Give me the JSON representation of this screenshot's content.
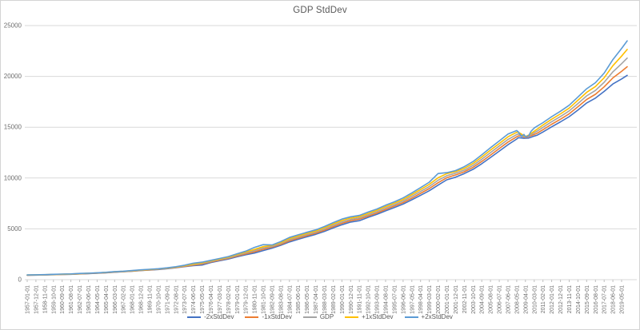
{
  "chart_data": {
    "type": "line",
    "title": "GDP StdDev",
    "ylim": [
      0,
      25000
    ],
    "yticks": [
      0,
      5000,
      10000,
      15000,
      20000,
      25000
    ],
    "grid": "horizontal",
    "legend_position": "bottom",
    "x_axis_note": "monthly dates, tick every 11 months, labels rotated 90deg",
    "months_per_tick": 11,
    "x_tick_labels": [
      "1957-01-01",
      "1957-12-01",
      "1958-11-01",
      "1959-10-01",
      "1960-09-01",
      "1961-08-01",
      "1962-07-01",
      "1963-06-01",
      "1964-05-01",
      "1965-04-01",
      "1966-03-01",
      "1967-02-01",
      "1968-01-01",
      "1968-12-01",
      "1969-11-01",
      "1970-10-01",
      "1971-09-01",
      "1972-08-01",
      "1973-07-01",
      "1974-06-01",
      "1975-05-01",
      "1976-04-01",
      "1977-03-01",
      "1978-02-01",
      "1979-01-01",
      "1979-12-01",
      "1980-11-01",
      "1981-10-01",
      "1982-09-01",
      "1983-08-01",
      "1984-07-01",
      "1985-06-01",
      "1986-05-01",
      "1987-04-01",
      "1988-03-01",
      "1989-02-01",
      "1990-01-01",
      "1990-12-01",
      "1991-11-01",
      "1992-10-01",
      "1993-09-01",
      "1994-08-01",
      "1995-07-01",
      "1996-06-01",
      "1997-05-01",
      "1998-04-01",
      "1999-03-01",
      "2000-02-01",
      "2001-01-01",
      "2001-12-01",
      "2002-11-01",
      "2003-10-01",
      "2004-09-01",
      "2005-08-01",
      "2006-07-01",
      "2007-06-01",
      "2008-05-01",
      "2009-04-01",
      "2010-03-01",
      "2011-02-01",
      "2012-01-01",
      "2012-12-01",
      "2013-11-01",
      "2014-10-01",
      "2015-09-01",
      "2016-08-01",
      "2017-07-01",
      "2018-06-01",
      "2019-05-01"
    ],
    "x_months_since_start": [
      0,
      11,
      22,
      33,
      44,
      55,
      66,
      77,
      88,
      99,
      110,
      121,
      132,
      143,
      154,
      165,
      176,
      187,
      198,
      209,
      220,
      231,
      242,
      253,
      264,
      275,
      286,
      297,
      308,
      319,
      330,
      341,
      352,
      363,
      374,
      385,
      396,
      407,
      418,
      429,
      440,
      451,
      462,
      473,
      484,
      495,
      506,
      517,
      528,
      539,
      550,
      561,
      572,
      583,
      594,
      605,
      616,
      618,
      622,
      625,
      627,
      631,
      634,
      638,
      642,
      649,
      660,
      671,
      682,
      693,
      704,
      715,
      726,
      737,
      748,
      755
    ],
    "series": [
      {
        "name": "-2xStdDev",
        "color": "#4472C4",
        "values": [
          438,
          448,
          460,
          490,
          508,
          525,
          566,
          596,
          631,
          674,
          732,
          775,
          826,
          894,
          944,
          1000,
          1076,
          1170,
          1280,
          1380,
          1440,
          1680,
          1860,
          2030,
          2250,
          2450,
          2620,
          2860,
          3100,
          3380,
          3710,
          3970,
          4220,
          4460,
          4750,
          5090,
          5400,
          5670,
          5800,
          6130,
          6430,
          6770,
          7100,
          7440,
          7860,
          8300,
          8750,
          9300,
          9830,
          10080,
          10440,
          10860,
          11410,
          12020,
          12650,
          13280,
          13840,
          13970,
          13940,
          13910,
          13920,
          13930,
          14010,
          14130,
          14220,
          14530,
          15040,
          15530,
          16040,
          16690,
          17380,
          17860,
          18520,
          19250,
          19750,
          20100
        ]
      },
      {
        "name": "-1xStdDev",
        "color": "#ED7D31",
        "values": [
          444,
          455,
          468,
          500,
          518,
          535,
          577,
          607,
          643,
          687,
          747,
          790,
          843,
          912,
          963,
          1020,
          1098,
          1195,
          1315,
          1430,
          1540,
          1735,
          1915,
          2090,
          2325,
          2540,
          2740,
          2990,
          3210,
          3470,
          3820,
          4080,
          4330,
          4570,
          4870,
          5220,
          5540,
          5800,
          5960,
          6260,
          6560,
          6910,
          7240,
          7590,
          8030,
          8490,
          8960,
          9540,
          10030,
          10300,
          10610,
          11050,
          11630,
          12260,
          12900,
          13540,
          14060,
          14150,
          14120,
          14030,
          13995,
          14080,
          14170,
          14290,
          14420,
          14760,
          15290,
          15790,
          16320,
          17010,
          17730,
          18240,
          18970,
          19850,
          20500,
          20950
        ]
      },
      {
        "name": "GDP",
        "color": "#A5A5A5",
        "values": [
          450,
          462,
          476,
          510,
          528,
          545,
          588,
          618,
          655,
          700,
          762,
          805,
          860,
          930,
          982,
          1040,
          1120,
          1220,
          1350,
          1480,
          1600,
          1790,
          1970,
          2150,
          2400,
          2630,
          2860,
          3120,
          3290,
          3560,
          3930,
          4190,
          4440,
          4680,
          4990,
          5350,
          5680,
          5930,
          6080,
          6390,
          6690,
          7050,
          7380,
          7740,
          8200,
          8680,
          9170,
          9780,
          10230,
          10470,
          10780,
          11240,
          11850,
          12500,
          13150,
          13800,
          14280,
          14330,
          14220,
          14090,
          14040,
          14150,
          14280,
          14450,
          14620,
          14990,
          15540,
          16050,
          16600,
          17330,
          18080,
          18620,
          19420,
          20450,
          21250,
          21800
        ]
      },
      {
        "name": "+1xStdDev",
        "color": "#FFC000",
        "values": [
          456,
          469,
          484,
          520,
          538,
          555,
          599,
          629,
          667,
          713,
          777,
          820,
          877,
          948,
          1001,
          1060,
          1142,
          1245,
          1385,
          1530,
          1660,
          1845,
          2025,
          2210,
          2475,
          2720,
          2980,
          3250,
          3370,
          3650,
          4040,
          4300,
          4550,
          4790,
          5110,
          5480,
          5820,
          6060,
          6200,
          6520,
          6820,
          7190,
          7520,
          7890,
          8370,
          8870,
          9380,
          10020,
          10430,
          10640,
          10950,
          11430,
          12070,
          12740,
          13400,
          14060,
          14500,
          14510,
          14320,
          14150,
          14085,
          14220,
          14390,
          14610,
          14820,
          15220,
          15790,
          16310,
          16880,
          17650,
          18430,
          19000,
          19870,
          21050,
          22000,
          22650
        ]
      },
      {
        "name": "+2xStdDev",
        "color": "#5B9BD5",
        "values": [
          462,
          476,
          492,
          530,
          548,
          565,
          610,
          640,
          679,
          726,
          792,
          835,
          894,
          966,
          1020,
          1080,
          1164,
          1270,
          1420,
          1620,
          1720,
          1900,
          2080,
          2270,
          2550,
          2810,
          3180,
          3440,
          3410,
          3740,
          4150,
          4410,
          4660,
          4900,
          5230,
          5610,
          5960,
          6190,
          6320,
          6650,
          6950,
          7330,
          7660,
          8040,
          8540,
          9060,
          9590,
          10440,
          10530,
          10730,
          11120,
          11620,
          12290,
          12980,
          13650,
          14320,
          14670,
          14540,
          14070,
          14290,
          14070,
          14140,
          14600,
          14920,
          15120,
          15450,
          16040,
          16570,
          17160,
          17970,
          18780,
          19380,
          20320,
          21650,
          22750,
          23500
        ]
      }
    ],
    "colors": {
      "gridline": "#D9D9D9",
      "axis_line": "#D9D9D9",
      "tick_mark": "#BFBFBF",
      "axis_text": "#6E6E6E",
      "title_text": "#595959"
    }
  }
}
